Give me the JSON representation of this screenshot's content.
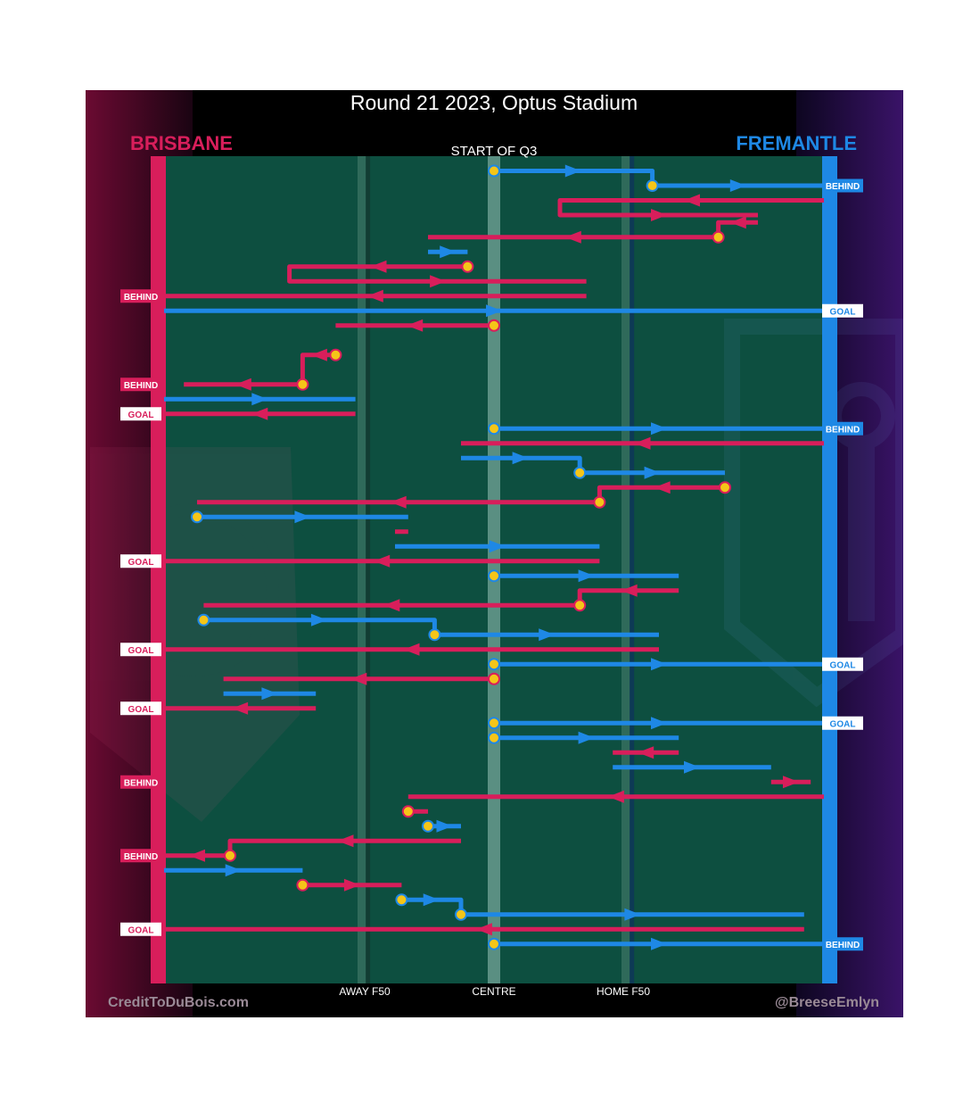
{
  "chart_data": {
    "type": "line",
    "title": "Round 21 2023, Optus Stadium",
    "subtitle": "START OF Q3",
    "teams": {
      "left": {
        "name": "BRISBANE",
        "color": "#d81e5b"
      },
      "right": {
        "name": "FREMANTLE",
        "color": "#1e88e5"
      }
    },
    "x_axis": {
      "labels": [
        "AWAY F50",
        "CENTRE",
        "HOME F50"
      ]
    },
    "credits": {
      "left": "CreditToDuBois.com",
      "right": "@BreeseEmlyn"
    },
    "colors": {
      "field": "#0d4f40",
      "brisbane": "#d81e5b",
      "fremantle": "#1e88e5",
      "possession_dot": "#f5c518"
    },
    "x_scale": "field position: 0 = Brisbane goal line, 100 = Fremantle goal line, 50 = centre",
    "chains": [
      {
        "team": "F",
        "segs": [
          [
            50,
            74
          ],
          [
            74,
            100
          ]
        ],
        "y": [
          1,
          2
        ],
        "dots": [
          0,
          1
        ],
        "end": "BEHIND"
      },
      {
        "team": "B",
        "segs": [
          [
            100,
            60
          ],
          [
            60,
            90
          ]
        ],
        "y": [
          3,
          4
        ],
        "dots": [],
        "end": null
      },
      {
        "team": "B",
        "segs": [
          [
            90,
            84
          ],
          [
            84,
            40
          ]
        ],
        "y": [
          4.5,
          5.5
        ],
        "dots": [
          1
        ],
        "end": null
      },
      {
        "team": "F",
        "segs": [
          [
            40,
            46
          ]
        ],
        "y": [
          6.5
        ],
        "dots": [],
        "end": null
      },
      {
        "team": "B",
        "segs": [
          [
            46,
            19
          ],
          [
            19,
            64
          ]
        ],
        "y": [
          7.5,
          8.5
        ],
        "dots": [
          0
        ],
        "end": null
      },
      {
        "team": "B",
        "segs": [
          [
            64,
            0
          ]
        ],
        "y": [
          9.5
        ],
        "dots": [],
        "end": "BEHIND"
      },
      {
        "team": "F",
        "segs": [
          [
            0,
            100
          ]
        ],
        "y": [
          10.5
        ],
        "dots": [],
        "end": "GOAL"
      },
      {
        "team": "B",
        "segs": [
          [
            50,
            26
          ]
        ],
        "y": [
          11.5
        ],
        "dots": [
          0
        ],
        "end": null
      },
      {
        "team": "F",
        "segs": [
          [
            26,
            26
          ]
        ],
        "y": [
          12
        ],
        "dots": [],
        "end": null
      },
      {
        "team": "B",
        "segs": [
          [
            26,
            21
          ],
          [
            21,
            3
          ]
        ],
        "y": [
          13.5,
          15.5
        ],
        "dots": [
          0,
          1
        ],
        "end": "BEHIND"
      },
      {
        "team": "F",
        "segs": [
          [
            0,
            29
          ]
        ],
        "y": [
          16.5
        ],
        "dots": [],
        "end": null
      },
      {
        "team": "B",
        "segs": [
          [
            29,
            0
          ]
        ],
        "y": [
          17.5
        ],
        "dots": [],
        "end": "GOAL"
      },
      {
        "team": "F",
        "segs": [
          [
            50,
            100
          ]
        ],
        "y": [
          18.5
        ],
        "dots": [
          0
        ],
        "end": "BEHIND"
      },
      {
        "team": "B",
        "segs": [
          [
            100,
            45
          ]
        ],
        "y": [
          19.5
        ],
        "dots": [],
        "end": null
      },
      {
        "team": "F",
        "segs": [
          [
            45,
            63
          ],
          [
            63,
            85
          ]
        ],
        "y": [
          20.5,
          21.5
        ],
        "dots": [
          1
        ],
        "end": null
      },
      {
        "team": "B",
        "segs": [
          [
            85,
            66
          ],
          [
            66,
            5
          ]
        ],
        "y": [
          22.5,
          23.5
        ],
        "dots": [
          0,
          1
        ],
        "end": null
      },
      {
        "team": "F",
        "segs": [
          [
            5,
            37
          ]
        ],
        "y": [
          24.5
        ],
        "dots": [
          0
        ],
        "end": null
      },
      {
        "team": "B",
        "segs": [
          [
            37,
            35
          ]
        ],
        "y": [
          25.5
        ],
        "dots": [],
        "end": null
      },
      {
        "team": "F",
        "segs": [
          [
            35,
            66
          ]
        ],
        "y": [
          26.5
        ],
        "dots": [],
        "end": null
      },
      {
        "team": "B",
        "segs": [
          [
            66,
            0
          ]
        ],
        "y": [
          27.5
        ],
        "dots": [],
        "end": "GOAL"
      },
      {
        "team": "F",
        "segs": [
          [
            50,
            78
          ]
        ],
        "y": [
          28.5
        ],
        "dots": [
          0
        ],
        "end": null
      },
      {
        "team": "B",
        "segs": [
          [
            78,
            63
          ],
          [
            63,
            6
          ]
        ],
        "y": [
          29.5,
          30.5
        ],
        "dots": [
          1
        ],
        "end": null
      },
      {
        "team": "F",
        "segs": [
          [
            6,
            41
          ],
          [
            41,
            75
          ]
        ],
        "y": [
          31.5,
          32.5
        ],
        "dots": [
          0,
          1
        ],
        "end": null
      },
      {
        "team": "B",
        "segs": [
          [
            75,
            0
          ]
        ],
        "y": [
          33.5
        ],
        "dots": [],
        "end": "GOAL"
      },
      {
        "team": "F",
        "segs": [
          [
            50,
            100
          ]
        ],
        "y": [
          34.5
        ],
        "dots": [
          0
        ],
        "end": "GOAL"
      },
      {
        "team": "B",
        "segs": [
          [
            50,
            9
          ]
        ],
        "y": [
          35.5
        ],
        "dots": [
          0
        ],
        "end": null
      },
      {
        "team": "F",
        "segs": [
          [
            9,
            23
          ]
        ],
        "y": [
          36.5
        ],
        "dots": [],
        "end": null
      },
      {
        "team": "B",
        "segs": [
          [
            23,
            0
          ]
        ],
        "y": [
          37.5
        ],
        "dots": [],
        "end": "GOAL"
      },
      {
        "team": "F",
        "segs": [
          [
            50,
            100
          ]
        ],
        "y": [
          38.5
        ],
        "dots": [
          0
        ],
        "end": "GOAL"
      },
      {
        "team": "F",
        "segs": [
          [
            50,
            78
          ]
        ],
        "y": [
          39.5
        ],
        "dots": [
          0
        ],
        "end": null
      },
      {
        "team": "B",
        "segs": [
          [
            78,
            68
          ]
        ],
        "y": [
          40.5
        ],
        "dots": [],
        "end": null
      },
      {
        "team": "F",
        "segs": [
          [
            68,
            92
          ]
        ],
        "y": [
          41.5
        ],
        "dots": [],
        "end": null
      },
      {
        "team": "B",
        "segs": [
          [
            92,
            98
          ]
        ],
        "y": [
          42.5
        ],
        "dots": [
          1
        ],
        "end": "BEHIND"
      },
      {
        "team": "B",
        "segs": [
          [
            100,
            37
          ]
        ],
        "y": [
          43.5
        ],
        "dots": [],
        "end": null
      },
      {
        "team": "B",
        "segs": [
          [
            37,
            40
          ]
        ],
        "y": [
          44.5
        ],
        "dots": [
          0
        ],
        "end": null
      },
      {
        "team": "F",
        "segs": [
          [
            40,
            45
          ]
        ],
        "y": [
          45.5
        ],
        "dots": [
          0
        ],
        "end": null
      },
      {
        "team": "B",
        "segs": [
          [
            45,
            10
          ],
          [
            10,
            0
          ]
        ],
        "y": [
          46.5,
          47.5
        ],
        "dots": [
          1
        ],
        "end": "BEHIND"
      },
      {
        "team": "F",
        "segs": [
          [
            0,
            21
          ]
        ],
        "y": [
          48.5
        ],
        "dots": [],
        "end": null
      },
      {
        "team": "B",
        "segs": [
          [
            21,
            36
          ]
        ],
        "y": [
          49.5
        ],
        "dots": [
          0
        ],
        "end": null
      },
      {
        "team": "F",
        "segs": [
          [
            36,
            45
          ],
          [
            45,
            97
          ]
        ],
        "y": [
          50.5,
          51.5
        ],
        "dots": [
          0,
          1
        ],
        "end": null
      },
      {
        "team": "B",
        "segs": [
          [
            97,
            0
          ]
        ],
        "y": [
          52.5
        ],
        "dots": [],
        "end": "GOAL"
      },
      {
        "team": "F",
        "segs": [
          [
            50,
            100
          ]
        ],
        "y": [
          53.5
        ],
        "dots": [
          0
        ],
        "end": "BEHIND"
      }
    ]
  }
}
